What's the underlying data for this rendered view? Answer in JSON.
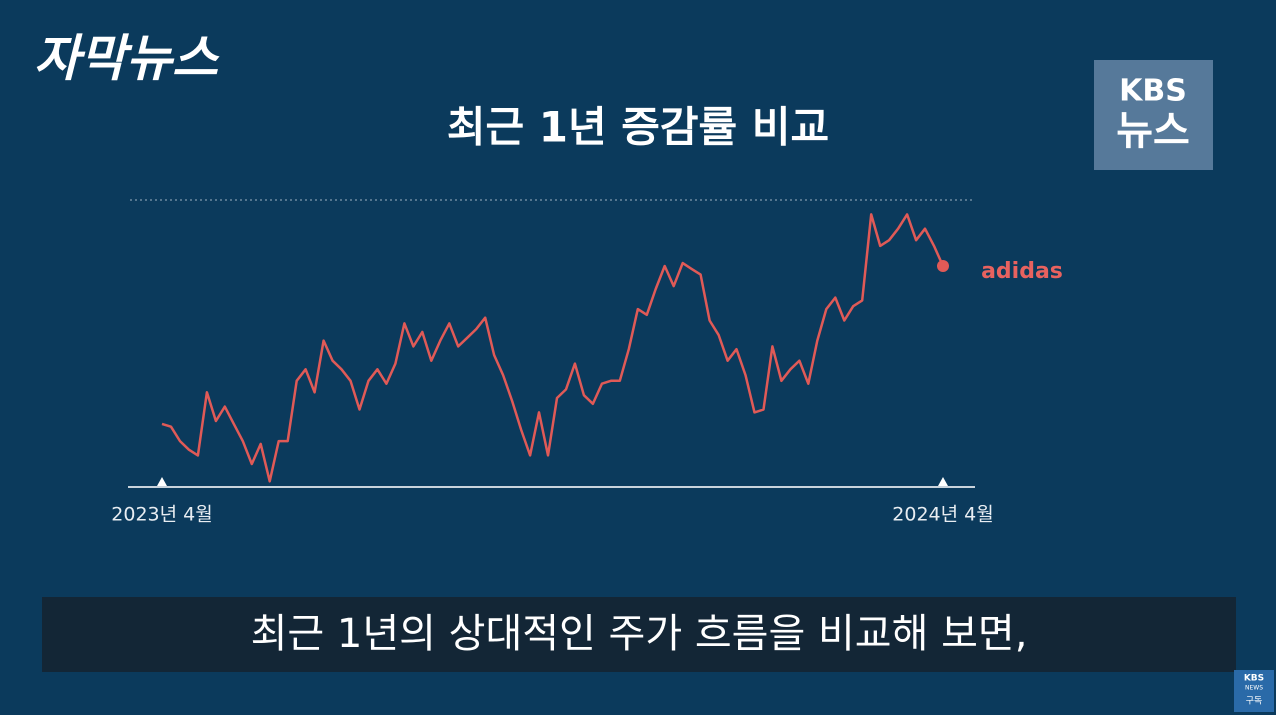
{
  "header": {
    "logo": "자막뉴스",
    "brand_top": "KBS",
    "brand_bottom": "뉴스"
  },
  "chart_data": {
    "type": "line",
    "title": "최근 1년 증감률 비교",
    "categories": [
      "2023년 4월",
      null,
      null,
      null,
      null,
      null,
      null,
      null,
      null,
      null,
      null,
      null,
      null,
      null,
      null,
      null,
      null,
      null,
      null,
      null,
      null,
      null,
      null,
      null,
      null,
      null,
      null,
      null,
      null,
      null,
      null,
      null,
      null,
      null,
      null,
      null,
      null,
      null,
      null,
      null,
      null,
      null,
      null,
      null,
      null,
      null,
      null,
      null,
      null,
      null,
      null,
      null,
      null,
      null,
      null,
      null,
      null,
      null,
      null,
      null,
      null,
      null,
      null,
      null,
      null,
      null,
      null,
      null,
      null,
      null,
      null,
      null,
      null,
      null,
      null,
      null,
      null,
      null,
      null,
      null,
      null,
      null,
      null,
      null,
      null,
      null,
      null,
      "2024년 4월"
    ],
    "series": [
      {
        "name": "adidas",
        "color": "#e05a57",
        "values": [
          22,
          21,
          16,
          13,
          11,
          33,
          23,
          28,
          22,
          16,
          8,
          15,
          2,
          16,
          16,
          37,
          41,
          33,
          51,
          44,
          41,
          37,
          27,
          37,
          41,
          36,
          43,
          57,
          49,
          54,
          44,
          51,
          57,
          49,
          52,
          55,
          59,
          46,
          39,
          30,
          20,
          11,
          26,
          11,
          31,
          34,
          43,
          32,
          29,
          36,
          37,
          37,
          48,
          62,
          60,
          69,
          77,
          70,
          78,
          76,
          74,
          58,
          53,
          44,
          48,
          39,
          26,
          27,
          49,
          37,
          41,
          44,
          36,
          51,
          62,
          66,
          58,
          63,
          65,
          95,
          84,
          86,
          90,
          95,
          86,
          90,
          84,
          77
        ]
      }
    ],
    "ylim": [
      0,
      100
    ]
  },
  "caption": "최근 1년의 상대적인 주가 흐름을 비교해 보면,",
  "badge": {
    "top": "KBS",
    "middle": "NEWS",
    "bottom": "구독"
  }
}
